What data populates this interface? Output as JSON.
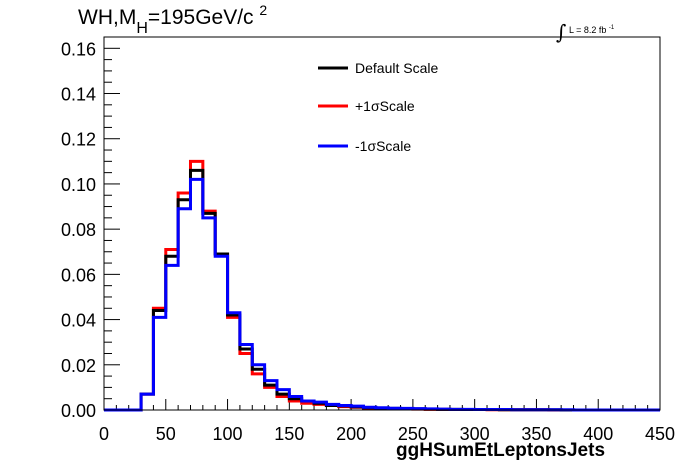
{
  "title": {
    "prefix": "WH,M",
    "subscript": "H",
    "mid": "=195GeV/c",
    "superscript": "2"
  },
  "lumi": {
    "integral": "∫",
    "text": "L = 8.2 fb",
    "superscript": "-1"
  },
  "chart_data": {
    "type": "line",
    "xlabel": "ggHSumEtLeptonsJets",
    "ylabel": "",
    "xlim": [
      0,
      450
    ],
    "ylim": [
      0,
      0.165
    ],
    "x_ticks": [
      0,
      50,
      100,
      150,
      200,
      250,
      300,
      350,
      400,
      450
    ],
    "y_ticks": [
      0.0,
      0.02,
      0.04,
      0.06,
      0.08,
      0.1,
      0.12,
      0.14,
      0.16
    ],
    "x_tick_labels": [
      "0",
      "50",
      "100",
      "150",
      "200",
      "250",
      "300",
      "350",
      "400",
      "450"
    ],
    "y_tick_labels": [
      "0.00",
      "0.02",
      "0.04",
      "0.06",
      "0.08",
      "0.10",
      "0.12",
      "0.14",
      "0.16"
    ],
    "bin_edges": [
      0,
      10,
      20,
      30,
      40,
      50,
      60,
      70,
      80,
      90,
      100,
      110,
      120,
      130,
      140,
      150,
      160,
      170,
      180,
      190,
      200,
      210,
      220,
      230,
      240,
      250,
      260,
      270,
      280,
      290,
      300,
      310,
      320,
      330,
      340,
      350,
      360,
      370,
      380,
      390,
      400,
      410,
      420,
      430,
      440,
      450
    ],
    "legend_position": "top-right",
    "series": [
      {
        "name": "Default Scale",
        "color": "#000000",
        "values": [
          0,
          0,
          0,
          0.007,
          0.044,
          0.068,
          0.093,
          0.106,
          0.087,
          0.069,
          0.042,
          0.027,
          0.018,
          0.011,
          0.007,
          0.005,
          0.004,
          0.003,
          0.002,
          0.0018,
          0.0014,
          0.001,
          0.0009,
          0.0007,
          0.0006,
          0.0005,
          0.0004,
          0.0003,
          0.0003,
          0.0002,
          0.0002,
          0.0002,
          0.0001,
          0.0001,
          0.0001,
          0.0001,
          0.0001,
          0,
          0,
          0,
          0,
          0,
          0,
          0,
          0
        ]
      },
      {
        "name": "+1σScale",
        "color": "#ff0000",
        "values": [
          0,
          0,
          0,
          0.007,
          0.045,
          0.071,
          0.096,
          0.11,
          0.088,
          0.069,
          0.041,
          0.025,
          0.016,
          0.01,
          0.006,
          0.004,
          0.003,
          0.0025,
          0.002,
          0.0015,
          0.0012,
          0.0009,
          0.0008,
          0.0006,
          0.0005,
          0.0004,
          0.0003,
          0.0003,
          0.0002,
          0.0002,
          0.0002,
          0.0001,
          0.0001,
          0.0001,
          0.0001,
          0.0001,
          0,
          0,
          0,
          0,
          0,
          0,
          0,
          0,
          0
        ]
      },
      {
        "name": "-1σScale",
        "color": "#0000ff",
        "values": [
          0,
          0,
          0,
          0.007,
          0.041,
          0.064,
          0.089,
          0.102,
          0.085,
          0.068,
          0.043,
          0.029,
          0.02,
          0.013,
          0.009,
          0.006,
          0.004,
          0.0035,
          0.0025,
          0.002,
          0.0017,
          0.0012,
          0.001,
          0.0008,
          0.0007,
          0.0006,
          0.0005,
          0.0004,
          0.0003,
          0.0003,
          0.0002,
          0.0002,
          0.0002,
          0.0001,
          0.0001,
          0.0001,
          0.0001,
          0.0001,
          0,
          0,
          0,
          0,
          0,
          0,
          0
        ]
      }
    ]
  }
}
